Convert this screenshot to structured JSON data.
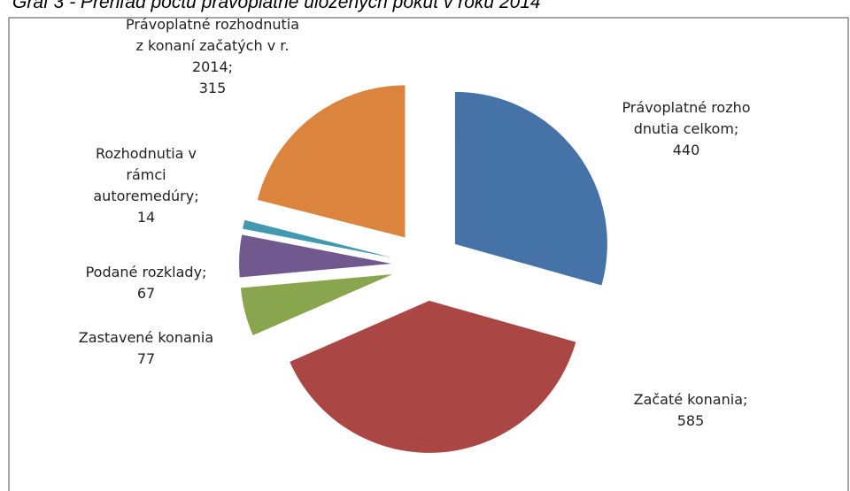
{
  "chart_data": {
    "type": "pie",
    "title": "Graf 3 - Prehľad počtu právoplatne uložených pokút v roku 2014",
    "categories": [
      "Právoplatné rozho dnutia celkom;",
      "Začaté konania;",
      "Zastavené konania",
      "Podané rozklady;",
      "Rozhodnutia v rámci autoremedúry;",
      "Právoplatné rozhodnutia z konaní začatých v r. 2014;"
    ],
    "values": [
      440,
      585,
      77,
      67,
      14,
      315
    ],
    "colors": [
      "#4572a7",
      "#aa4643",
      "#89a54e",
      "#71588f",
      "#4198af",
      "#db843d"
    ]
  }
}
